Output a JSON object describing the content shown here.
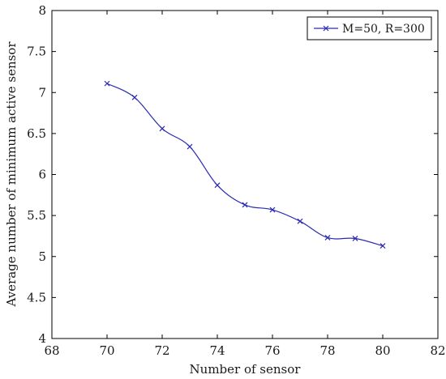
{
  "chart_data": {
    "type": "line",
    "xlabel": "Number of sensor",
    "ylabel": "Average number of minimum active sensor",
    "xlim": [
      68,
      82
    ],
    "ylim": [
      4,
      8
    ],
    "xticks": [
      68,
      70,
      72,
      74,
      76,
      78,
      80,
      82
    ],
    "yticks": [
      4,
      4.5,
      5,
      5.5,
      6,
      6.5,
      7,
      7.5,
      8
    ],
    "grid": false,
    "legend_position": "top-right",
    "series": [
      {
        "name": "M=50, R=300",
        "color": "#2b2bb5",
        "marker": "x",
        "x": [
          70,
          71,
          72,
          73,
          74,
          75,
          76,
          77,
          78,
          79,
          80
        ],
        "y": [
          7.11,
          6.94,
          6.56,
          6.34,
          5.87,
          5.63,
          5.57,
          5.43,
          5.23,
          5.22,
          5.13
        ]
      }
    ]
  }
}
